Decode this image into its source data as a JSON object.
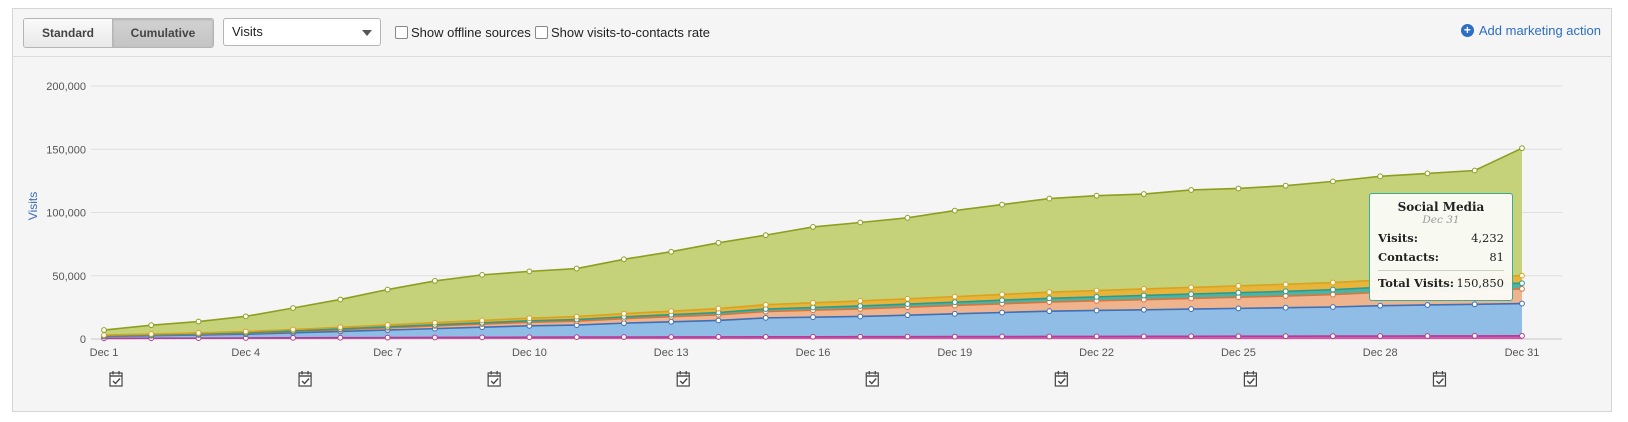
{
  "toolbar": {
    "standard_label": "Standard",
    "cumulative_label": "Cumulative",
    "metric_select": "Visits",
    "offline_label": "Show offline sources",
    "rate_label": "Show visits-to-contacts rate",
    "add_action_label": "Add marketing action"
  },
  "tooltip": {
    "title": "Social Media",
    "date": "Dec 31",
    "visits_label": "Visits:",
    "visits_value": "4,232",
    "contacts_label": "Contacts:",
    "contacts_value": "81",
    "total_label": "Total Visits:",
    "total_value": "150,850"
  },
  "colors": {
    "social_media": "#c5d27a",
    "orange": "#e8b43a",
    "teal": "#4fb3a4",
    "salmon": "#efb48e",
    "blue": "#8fbde6",
    "pink": "#d05ab0"
  },
  "chart_data": {
    "type": "area",
    "stacked": true,
    "cumulative": true,
    "ylabel": "Visits",
    "xlabel": "",
    "ylim": [
      0,
      200000
    ],
    "yticks": [
      "0",
      "50,000",
      "100,000",
      "150,000",
      "200,000"
    ],
    "xticks": [
      "Dec 1",
      "Dec 4",
      "Dec 7",
      "Dec 10",
      "Dec 13",
      "Dec 16",
      "Dec 19",
      "Dec 22",
      "Dec 25",
      "Dec 28",
      "Dec 31"
    ],
    "x": [
      1,
      2,
      3,
      4,
      5,
      6,
      7,
      8,
      9,
      10,
      11,
      12,
      13,
      14,
      15,
      16,
      17,
      18,
      19,
      20,
      21,
      22,
      23,
      24,
      25,
      26,
      27,
      28,
      29,
      30,
      31
    ],
    "series": [
      {
        "color": "#d05ab0",
        "values": [
          500,
          600,
          700,
          800,
          900,
          1000,
          1100,
          1200,
          1300,
          1400,
          1500,
          1550,
          1600,
          1650,
          1700,
          1750,
          1800,
          1850,
          1900,
          1950,
          2000,
          2050,
          2100,
          2150,
          2200,
          2250,
          2300,
          2350,
          2400,
          2450,
          2500
        ]
      },
      {
        "color": "#8fbde6",
        "values": [
          1500,
          2000,
          2500,
          3000,
          4000,
          5000,
          6000,
          7000,
          8000,
          9000,
          9500,
          11000,
          12000,
          13000,
          15000,
          15500,
          16000,
          17000,
          18000,
          19000,
          20000,
          20500,
          21000,
          21500,
          22000,
          22500,
          23000,
          24000,
          24500,
          25000,
          25500
        ]
      },
      {
        "color": "#efb48e",
        "values": [
          400,
          500,
          600,
          800,
          1000,
          1300,
          1700,
          2100,
          2500,
          2800,
          3100,
          3500,
          4000,
          4500,
          5000,
          5500,
          6000,
          6300,
          6600,
          6900,
          7200,
          7600,
          8000,
          8400,
          8800,
          9200,
          9800,
          10500,
          11000,
          11500,
          11600
        ]
      },
      {
        "color": "#4fb3a4",
        "values": [
          200,
          250,
          300,
          400,
          500,
          650,
          800,
          900,
          1000,
          1150,
          1300,
          1450,
          1600,
          1800,
          2000,
          2150,
          2300,
          2450,
          2600,
          2800,
          3000,
          3150,
          3300,
          3450,
          3600,
          3750,
          3900,
          4050,
          4200,
          4350,
          4500
        ]
      },
      {
        "color": "#e8b43a",
        "values": [
          500,
          600,
          700,
          900,
          1100,
          1300,
          1500,
          1700,
          1900,
          2100,
          2300,
          2500,
          2800,
          3100,
          3400,
          3700,
          4000,
          4200,
          4400,
          4600,
          4800,
          5000,
          5200,
          5300,
          5400,
          5500,
          5600,
          5700,
          5800,
          5900,
          6000
        ]
      },
      {
        "name": "Social Media",
        "color": "#c5d27a",
        "values": [
          4000,
          7000,
          9000,
          12000,
          17000,
          22000,
          28000,
          33000,
          36000,
          37000,
          38000,
          43000,
          47000,
          52000,
          55000,
          60000,
          62000,
          64000,
          68000,
          71000,
          74000,
          75000,
          75000,
          77000,
          77000,
          78000,
          80000,
          82000,
          83000,
          84000,
          100750
        ]
      }
    ]
  },
  "marketing_actions": [
    1,
    5,
    9,
    13,
    17,
    21,
    25,
    29
  ]
}
